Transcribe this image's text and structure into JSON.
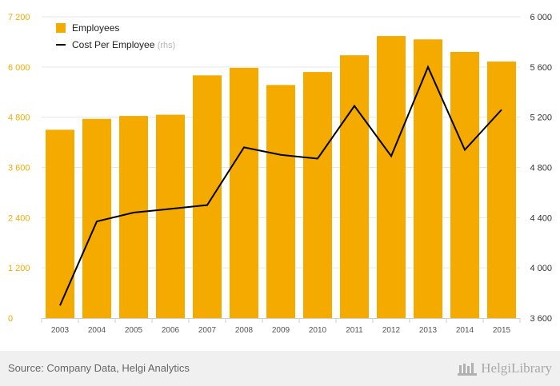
{
  "chart_data": {
    "type": "bar",
    "title": "",
    "categories": [
      "2003",
      "2004",
      "2005",
      "2006",
      "2007",
      "2008",
      "2009",
      "2010",
      "2011",
      "2012",
      "2013",
      "2014",
      "2015"
    ],
    "series": [
      {
        "name": "Employees",
        "type": "bar",
        "axis": "left",
        "color": "#f5aa00",
        "values": [
          4500,
          4760,
          4830,
          4860,
          5800,
          5980,
          5570,
          5880,
          6280,
          6740,
          6660,
          6360,
          6130
        ]
      },
      {
        "name": "Cost Per Employee",
        "suffix": "(rhs)",
        "type": "line",
        "axis": "right",
        "color": "#000000",
        "values": [
          3700,
          4370,
          4440,
          4470,
          4500,
          4960,
          4900,
          4870,
          5290,
          4890,
          5600,
          4940,
          5260
        ]
      }
    ],
    "y_left": {
      "ylim": [
        0,
        7200
      ],
      "ticks": [
        "0",
        "1 200",
        "2 400",
        "3 600",
        "4 800",
        "6 000",
        "7 200"
      ],
      "tick_values": [
        0,
        1200,
        2400,
        3600,
        4800,
        6000,
        7200
      ]
    },
    "y_right": {
      "ylim": [
        3600,
        6000
      ],
      "ticks": [
        "3 600",
        "4 000",
        "4 400",
        "4 800",
        "5 200",
        "5 600",
        "6 000"
      ],
      "tick_values": [
        3600,
        4000,
        4400,
        4800,
        5200,
        5600,
        6000
      ]
    },
    "xlabel": "",
    "ylabel": "",
    "grid": true,
    "legend": "top-left"
  },
  "footer": {
    "source": "Source: Company Data, Helgi Analytics",
    "brand": "HelgiLibrary"
  },
  "colors": {
    "bar": "#f5aa00",
    "line": "#000000",
    "left_tick": "#f5aa00",
    "right_tick": "#333333",
    "grid": "#e6e6e6"
  }
}
